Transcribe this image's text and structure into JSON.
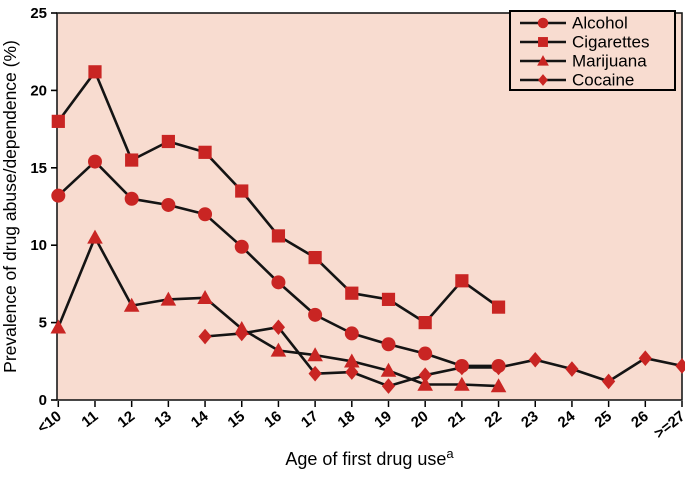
{
  "figure": {
    "background": "#ffffff",
    "plot_background": "#f8dcd0",
    "marker_color": "#c92523",
    "line_color": "#141414",
    "frame_color": "#1a1a1a",
    "tick_label_color": "#000000"
  },
  "chart_data": {
    "type": "line",
    "title": "",
    "xlabel": "Age of first drug use",
    "xlabel_superscript": "a",
    "ylabel": "Prevalence of drug abuse/dependence  (%)",
    "categories": [
      "<10",
      "11",
      "12",
      "13",
      "14",
      "15",
      "16",
      "17",
      "18",
      "19",
      "20",
      "21",
      "22",
      "23",
      "24",
      "25",
      "26",
      ">=27"
    ],
    "ylim": [
      0,
      25
    ],
    "yticks": [
      0,
      5,
      10,
      15,
      20,
      25
    ],
    "grid": false,
    "legend_position": "top-right",
    "legend_entries": [
      "Alcohol",
      "Cigarettes",
      "Marijuana",
      "Cocaine"
    ],
    "series": [
      {
        "name": "Alcohol",
        "marker": "circle",
        "values": [
          13.2,
          15.4,
          13.0,
          12.6,
          12.0,
          9.9,
          7.6,
          5.5,
          4.3,
          3.6,
          3.0,
          2.2,
          2.2,
          null,
          null,
          null,
          null,
          null
        ]
      },
      {
        "name": "Cigarettes",
        "marker": "square",
        "values": [
          18.0,
          21.2,
          15.5,
          16.7,
          16.0,
          13.5,
          10.6,
          9.2,
          6.9,
          6.5,
          5.0,
          7.7,
          6.0,
          null,
          null,
          null,
          null,
          null
        ]
      },
      {
        "name": "Marijuana",
        "marker": "triangle",
        "values": [
          4.7,
          10.5,
          6.1,
          6.5,
          6.6,
          4.6,
          3.2,
          2.9,
          2.5,
          1.9,
          1.0,
          1.0,
          0.9,
          null,
          null,
          null,
          null,
          null
        ]
      },
      {
        "name": "Cocaine",
        "marker": "diamond",
        "values": [
          null,
          null,
          null,
          null,
          4.1,
          4.3,
          4.7,
          1.7,
          1.8,
          0.9,
          1.6,
          2.1,
          2.1,
          2.6,
          2.0,
          1.2,
          2.7,
          2.2
        ]
      }
    ]
  }
}
